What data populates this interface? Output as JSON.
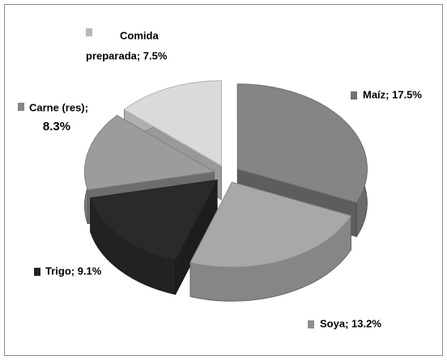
{
  "chart_data": {
    "type": "pie3d",
    "values": [
      17.5,
      13.2,
      9.1,
      8.3,
      7.5
    ],
    "value_labels": [
      [
        "Maíz; 17.5%"
      ],
      [
        "Soya; 13.2%"
      ],
      [
        "Trigo; 9.1%"
      ],
      [
        "Carne (res);",
        "8.3%"
      ],
      [
        "Comida",
        "preparada; 7.5%"
      ]
    ],
    "colors": [
      "#858585",
      "#a8a8a8",
      "#2a2a2a",
      "#9c9c9c",
      "#dadada"
    ]
  }
}
